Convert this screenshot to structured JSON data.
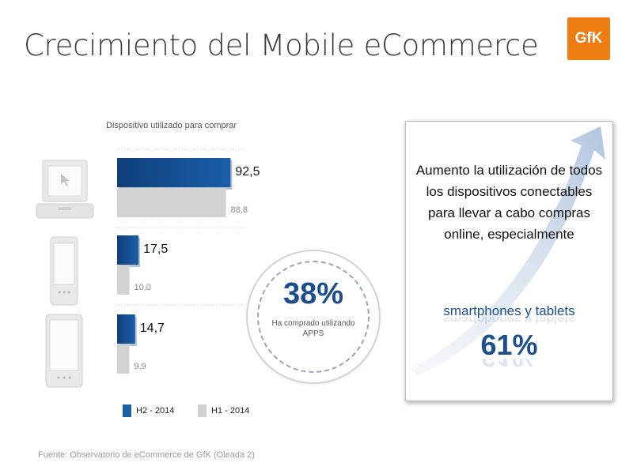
{
  "title": "Crecimiento del Mobile eCommerce",
  "logo": {
    "text": "GfK",
    "color": "#f07d12"
  },
  "chart_data": {
    "type": "bar",
    "title": "Dispositivo utilizado para comprar",
    "orientation": "horizontal",
    "categories": [
      "laptop",
      "smartphone",
      "tablet"
    ],
    "series": [
      {
        "name": "H2 - 2014",
        "values": [
          92.5,
          17.5,
          14.7
        ],
        "labels": [
          "92,5",
          "17,5",
          "14,7"
        ],
        "color": "#1a5fa8"
      },
      {
        "name": "H1 - 2014",
        "values": [
          88.8,
          10.0,
          9.9
        ],
        "labels": [
          "88,8",
          "10,0",
          "9,9"
        ],
        "color": "#d2d2d2"
      }
    ],
    "xlim": [
      0,
      100
    ],
    "grid": false,
    "legend": "bottom"
  },
  "callout": {
    "value": "38%",
    "text": "Ha comprado utilizando APPS"
  },
  "info_box": {
    "text": "Aumento  la utilización de todos los dispositivos conectables para llevar a cabo compras online, especialmente",
    "highlight": "smartphones y tablets",
    "value": "61%"
  },
  "source": "Fuente: Observatorio de eCommerce de GfK (Oleada 2)"
}
